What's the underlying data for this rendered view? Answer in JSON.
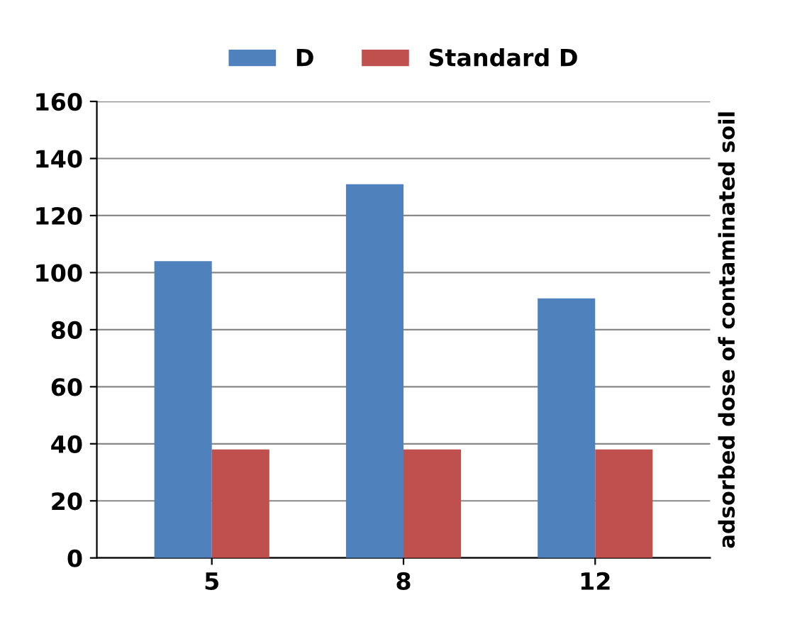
{
  "chart_data": {
    "type": "bar",
    "ylabel": "adsorbed dose of contaminated soil",
    "categories": [
      "5",
      "8",
      "12"
    ],
    "series": [
      {
        "name": "D",
        "color": "#4f81bd",
        "values": [
          104,
          131,
          91
        ]
      },
      {
        "name": "Standard D",
        "color": "#c0504d",
        "values": [
          38,
          38,
          38
        ]
      }
    ],
    "ylim": [
      0,
      160
    ],
    "yticks": [
      0,
      20,
      40,
      60,
      80,
      100,
      120,
      140,
      160
    ],
    "grid": "y",
    "legend": "top"
  }
}
